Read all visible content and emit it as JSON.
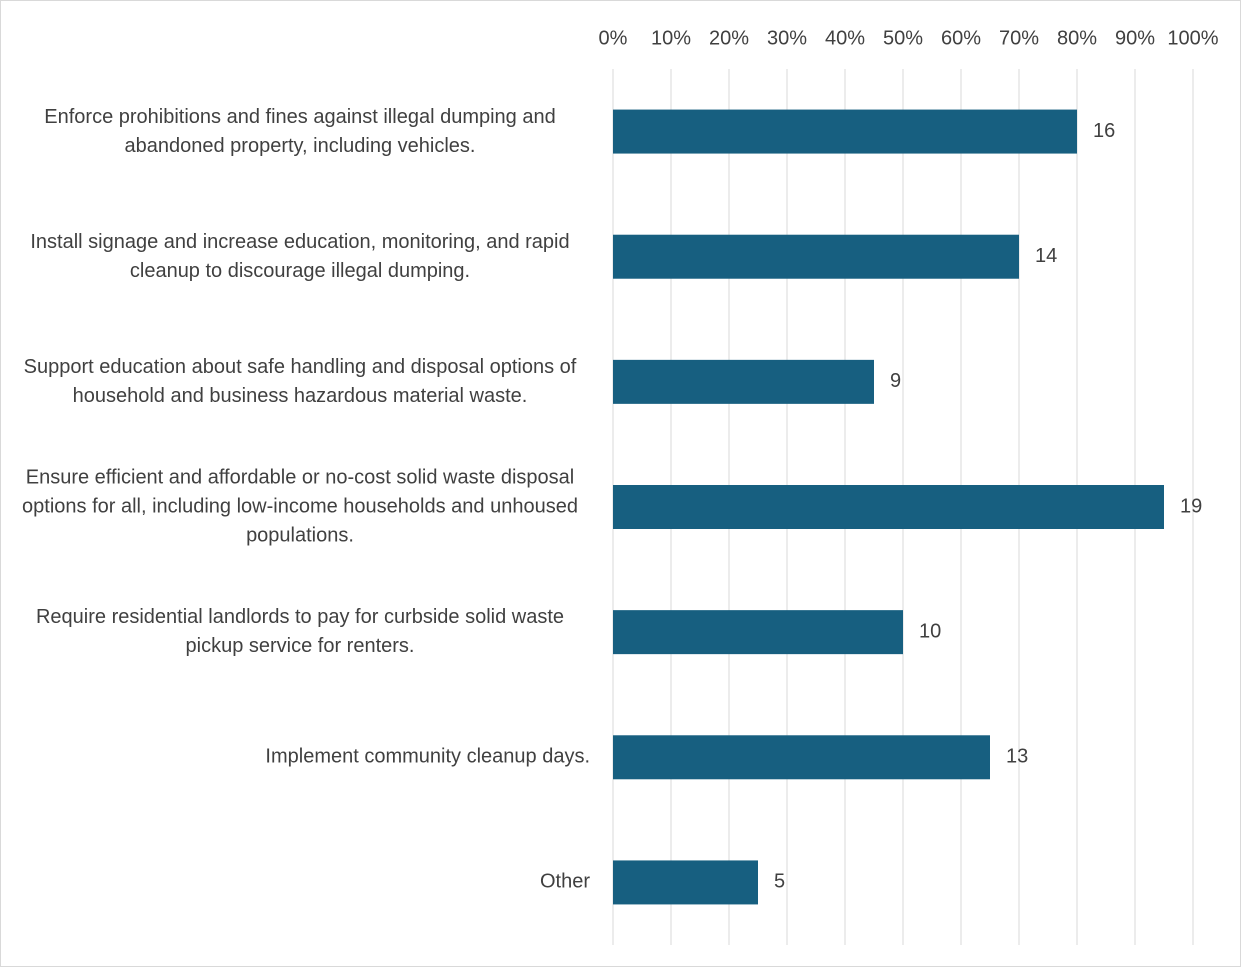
{
  "chart_data": {
    "type": "bar",
    "orientation": "horizontal",
    "categories": [
      "Enforce prohibitions and fines against illegal dumping and abandoned property, including vehicles.",
      "Install signage and increase education, monitoring, and rapid cleanup to discourage illegal dumping.",
      "Support education about safe handling and disposal options of household and business hazardous material waste.",
      "Ensure efficient and affordable or no-cost solid waste disposal options for all, including low-income households and unhoused populations.",
      "Require residential landlords to pay for curbside solid waste pickup service for renters.",
      "Implement community cleanup days.",
      "Other"
    ],
    "values": [
      80,
      70,
      45,
      95,
      50,
      65,
      25
    ],
    "value_labels": [
      "16",
      "14",
      "9",
      "19",
      "10",
      "13",
      "5"
    ],
    "color": "#175f80",
    "xlim": [
      0,
      100
    ],
    "xticks": [
      {
        "value": 0,
        "label": "0%"
      },
      {
        "value": 10,
        "label": "10%"
      },
      {
        "value": 20,
        "label": "20%"
      },
      {
        "value": 30,
        "label": "30%"
      },
      {
        "value": 40,
        "label": "40%"
      },
      {
        "value": 50,
        "label": "50%"
      },
      {
        "value": 60,
        "label": "60%"
      },
      {
        "value": 70,
        "label": "70%"
      },
      {
        "value": 80,
        "label": "80%"
      },
      {
        "value": 90,
        "label": "90%"
      },
      {
        "value": 100,
        "label": "100%"
      }
    ],
    "grid": true
  }
}
